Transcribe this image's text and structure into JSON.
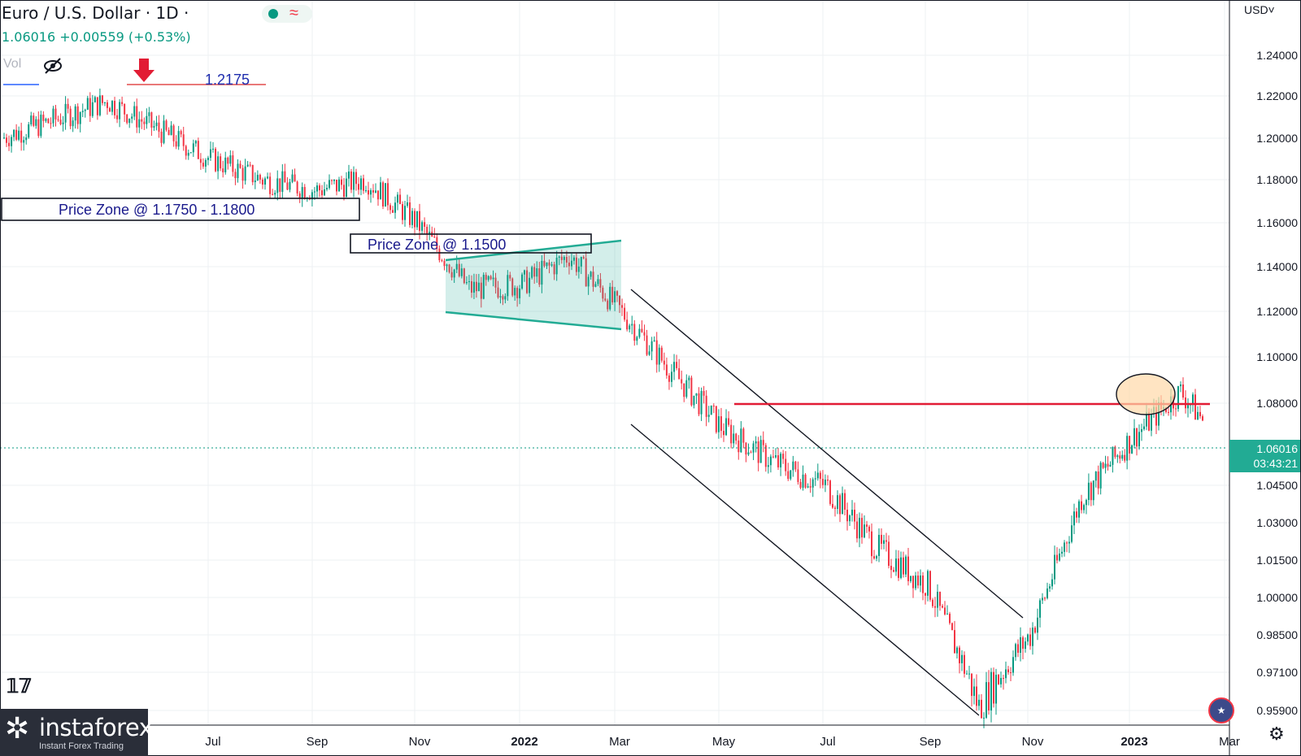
{
  "header": {
    "title": "Euro / U.S. Dollar · 1D ·",
    "price_line": "1.06016 +0.00559 (+0.53%)",
    "vol_label": "Vol"
  },
  "currency_label": "USD˅",
  "brand": {
    "name": "instaforex",
    "tagline": "Instant Forex Trading"
  },
  "colors": {
    "up": "#089981",
    "down": "#f23645",
    "resistance": "#e21c34",
    "pattern": "#22ab94",
    "annotation": "#1f2dae"
  },
  "chart_data": {
    "type": "candlestick",
    "x_ticks": [
      "Jul",
      "Sep",
      "Nov",
      "2022",
      "Mar",
      "May",
      "Jul",
      "Sep",
      "Nov",
      "2023",
      "Mar"
    ],
    "y_ticks": [
      "1.24000",
      "1.22000",
      "1.20000",
      "1.18000",
      "1.16000",
      "1.14000",
      "1.12000",
      "1.10000",
      "1.08000",
      "1.04500",
      "1.03000",
      "1.01500",
      "1.00000",
      "0.98500",
      "0.97100",
      "0.95900"
    ],
    "current_price": "1.06016",
    "countdown": "03:43:21",
    "series": [
      {
        "date": "2021-04",
        "close": 1.2
      },
      {
        "date": "2021-05",
        "close": 1.2175
      },
      {
        "date": "2021-06",
        "close": 1.19
      },
      {
        "date": "2021-07",
        "close": 1.18
      },
      {
        "date": "2021-08",
        "close": 1.175
      },
      {
        "date": "2021-09",
        "close": 1.18
      },
      {
        "date": "2021-10",
        "close": 1.16
      },
      {
        "date": "2021-11",
        "close": 1.13
      },
      {
        "date": "2021-12",
        "close": 1.132
      },
      {
        "date": "2022-01",
        "close": 1.145
      },
      {
        "date": "2022-02",
        "close": 1.122
      },
      {
        "date": "2022-03",
        "close": 1.095
      },
      {
        "date": "2022-04",
        "close": 1.07
      },
      {
        "date": "2022-05",
        "close": 1.055
      },
      {
        "date": "2022-06",
        "close": 1.045
      },
      {
        "date": "2022-07",
        "close": 1.02
      },
      {
        "date": "2022-08",
        "close": 1.005
      },
      {
        "date": "2022-09",
        "close": 0.96
      },
      {
        "date": "2022-10",
        "close": 0.985
      },
      {
        "date": "2022-11",
        "close": 1.04
      },
      {
        "date": "2022-12",
        "close": 1.065
      },
      {
        "date": "2023-01",
        "close": 1.085
      },
      {
        "date": "2023-02",
        "close": 1.06
      }
    ],
    "annotations": {
      "top_label": "1.2175",
      "zone1": "Price Zone @ 1.1750 - 1.1800",
      "zone2": "Price Zone @ 1.1500"
    }
  }
}
